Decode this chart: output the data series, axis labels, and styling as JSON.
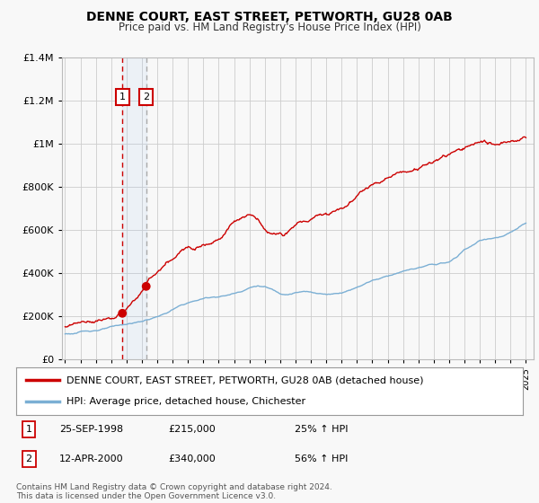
{
  "title": "DENNE COURT, EAST STREET, PETWORTH, GU28 0AB",
  "subtitle": "Price paid vs. HM Land Registry's House Price Index (HPI)",
  "legend_line1": "DENNE COURT, EAST STREET, PETWORTH, GU28 0AB (detached house)",
  "legend_line2": "HPI: Average price, detached house, Chichester",
  "transaction1_date": "25-SEP-1998",
  "transaction1_price": 215000,
  "transaction1_hpi_pct": "25%",
  "transaction2_date": "12-APR-2000",
  "transaction2_price": 340000,
  "transaction2_hpi_pct": "56%",
  "footnote": "Contains HM Land Registry data © Crown copyright and database right 2024.\nThis data is licensed under the Open Government Licence v3.0.",
  "red_color": "#cc0000",
  "blue_color": "#7bafd4",
  "background_color": "#f8f8f8",
  "grid_color": "#cccccc",
  "transaction1_year": 1998.73,
  "transaction2_year": 2000.28,
  "ylim": [
    0,
    1400000
  ],
  "xlim_start": 1994.8,
  "xlim_end": 2025.5,
  "hpi_years": [
    1995.0,
    1995.5,
    1996.0,
    1996.5,
    1997.0,
    1997.5,
    1998.0,
    1998.5,
    1999.0,
    1999.5,
    2000.0,
    2000.5,
    2001.0,
    2001.5,
    2002.0,
    2002.5,
    2003.0,
    2003.5,
    2004.0,
    2004.5,
    2005.0,
    2005.5,
    2006.0,
    2006.5,
    2007.0,
    2007.5,
    2008.0,
    2008.5,
    2009.0,
    2009.5,
    2010.0,
    2010.5,
    2011.0,
    2011.5,
    2012.0,
    2012.5,
    2013.0,
    2013.5,
    2014.0,
    2014.5,
    2015.0,
    2015.5,
    2016.0,
    2016.5,
    2017.0,
    2017.5,
    2018.0,
    2018.5,
    2019.0,
    2019.5,
    2020.0,
    2020.5,
    2021.0,
    2021.5,
    2022.0,
    2022.5,
    2023.0,
    2023.5,
    2024.0,
    2024.5,
    2025.0
  ],
  "hpi_values": [
    120000,
    122000,
    128000,
    132000,
    138000,
    144000,
    150000,
    155000,
    162000,
    168000,
    175000,
    185000,
    198000,
    210000,
    228000,
    245000,
    258000,
    268000,
    278000,
    285000,
    290000,
    295000,
    305000,
    318000,
    335000,
    345000,
    340000,
    325000,
    308000,
    310000,
    318000,
    322000,
    318000,
    315000,
    310000,
    315000,
    322000,
    335000,
    350000,
    368000,
    385000,
    395000,
    408000,
    420000,
    430000,
    438000,
    445000,
    452000,
    458000,
    462000,
    468000,
    490000,
    525000,
    545000,
    565000,
    575000,
    580000,
    585000,
    600000,
    620000,
    640000
  ],
  "price_years": [
    1995.0,
    1995.5,
    1996.0,
    1996.5,
    1997.0,
    1997.5,
    1998.0,
    1998.5,
    1998.73,
    1999.0,
    1999.5,
    2000.0,
    2000.28,
    2000.5,
    2001.0,
    2001.5,
    2002.0,
    2002.5,
    2003.0,
    2003.5,
    2004.0,
    2004.5,
    2005.0,
    2005.5,
    2006.0,
    2006.5,
    2007.0,
    2007.3,
    2007.5,
    2008.0,
    2008.5,
    2009.0,
    2009.2,
    2009.5,
    2010.0,
    2010.5,
    2011.0,
    2011.5,
    2012.0,
    2012.5,
    2013.0,
    2013.5,
    2014.0,
    2014.5,
    2015.0,
    2015.5,
    2016.0,
    2016.5,
    2017.0,
    2017.5,
    2018.0,
    2018.3,
    2018.5,
    2019.0,
    2019.5,
    2020.0,
    2020.5,
    2021.0,
    2021.5,
    2022.0,
    2022.3,
    2022.5,
    2023.0,
    2023.5,
    2024.0,
    2024.5,
    2025.0
  ],
  "price_values": [
    150000,
    155000,
    162000,
    168000,
    178000,
    188000,
    198000,
    208000,
    215000,
    228000,
    268000,
    308000,
    340000,
    358000,
    390000,
    415000,
    440000,
    468000,
    490000,
    512000,
    535000,
    555000,
    580000,
    620000,
    665000,
    690000,
    700000,
    695000,
    680000,
    640000,
    620000,
    620000,
    618000,
    635000,
    660000,
    680000,
    690000,
    710000,
    720000,
    740000,
    760000,
    790000,
    820000,
    860000,
    890000,
    910000,
    930000,
    945000,
    950000,
    965000,
    975000,
    990000,
    985000,
    1000000,
    1020000,
    1030000,
    1040000,
    1055000,
    1070000,
    1080000,
    1090000,
    1075000,
    1060000,
    1065000,
    1080000,
    1090000,
    1100000
  ]
}
